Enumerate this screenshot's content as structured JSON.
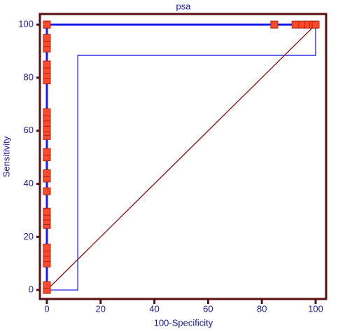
{
  "chart_data": {
    "type": "line",
    "title": "psa",
    "x_label": "100-Specificity",
    "y_label": "Sensitivity",
    "xlim": [
      -2.6,
      103.9
    ],
    "ylim": [
      -3.4,
      104
    ],
    "xticks": [
      0,
      20,
      40,
      60,
      80,
      100
    ],
    "yticks": [
      0,
      20,
      40,
      60,
      80,
      100
    ],
    "series": [
      {
        "color": "#1a1ae6",
        "marker": "square",
        "marker_color": "#ff4a2a",
        "x": [
          0,
          0,
          0,
          0,
          0,
          0,
          0,
          0,
          0,
          0,
          0,
          0,
          0,
          0,
          0,
          0,
          0,
          0,
          0,
          0,
          0,
          0,
          0,
          0,
          0,
          0,
          0,
          0,
          0,
          0,
          84.6,
          92.5,
          95,
          97.3,
          99,
          100
        ],
        "values": [
          0,
          1.8,
          10,
          12,
          14,
          16,
          24.5,
          26,
          27.7,
          29.5,
          37.2,
          42,
          44,
          50,
          52,
          58,
          59.5,
          61,
          63,
          65,
          67,
          79,
          81,
          83,
          85,
          91,
          93,
          95,
          100,
          100,
          100,
          100,
          100,
          100,
          100,
          100
        ]
      },
      {
        "color": "#1a1ae6",
        "x": [
          0,
          11.5,
          11.5,
          100,
          100
        ],
        "values": [
          0,
          0,
          88.4,
          88.4,
          100
        ]
      },
      {
        "color": "#8b0a0a",
        "x": [
          0,
          100
        ],
        "values": [
          0,
          100
        ]
      }
    ]
  }
}
